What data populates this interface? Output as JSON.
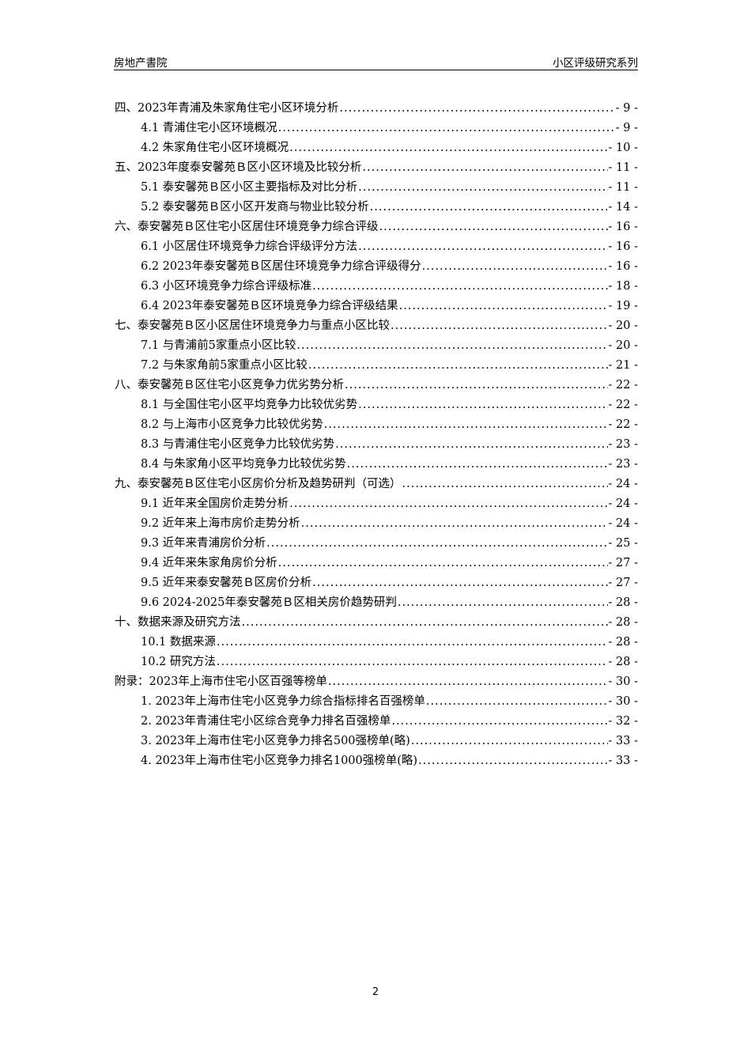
{
  "header": {
    "left": "房地产書院",
    "right": "小区评级研究系列"
  },
  "toc": [
    {
      "level": 1,
      "title": "四、2023年青浦及朱家角住宅小区环境分析",
      "page": "- 9 -"
    },
    {
      "level": 2,
      "title": "4.1 青浦住宅小区环境概况",
      "page": "- 9 -"
    },
    {
      "level": 2,
      "title": "4.2 朱家角住宅小区环境概况",
      "page": "- 10 -"
    },
    {
      "level": 1,
      "title": "五、2023年度泰安馨苑Ｂ区小区环境及比较分析",
      "page": "- 11 -"
    },
    {
      "level": 2,
      "title": "5.1 泰安馨苑Ｂ区小区主要指标及对比分析",
      "page": "- 11 -"
    },
    {
      "level": 2,
      "title": "5.2 泰安馨苑Ｂ区小区开发商与物业比较分析",
      "page": "- 14 -"
    },
    {
      "level": 1,
      "title": "六、泰安馨苑Ｂ区住宅小区居住环境竞争力综合评级",
      "page": "- 16 -"
    },
    {
      "level": 2,
      "title": "6.1 小区居住环境竞争力综合评级评分方法",
      "page": "- 16 -"
    },
    {
      "level": 2,
      "title": "6.2 2023年泰安馨苑Ｂ区居住环境竞争力综合评级得分",
      "page": "- 16 -"
    },
    {
      "level": 2,
      "title": "6.3 小区环境竞争力综合评级标准",
      "page": "- 18 -"
    },
    {
      "level": 2,
      "title": "6.4 2023年泰安馨苑Ｂ区环境竞争力综合评级结果",
      "page": "- 19 -"
    },
    {
      "level": 1,
      "title": "七、泰安馨苑Ｂ区小区居住环境竞争力与重点小区比较",
      "page": "- 20 -"
    },
    {
      "level": 2,
      "title": "7.1 与青浦前5家重点小区比较",
      "page": "- 20 -"
    },
    {
      "level": 2,
      "title": "7.2 与朱家角前5家重点小区比较",
      "page": "- 21 -"
    },
    {
      "level": 1,
      "title": "八、泰安馨苑Ｂ区住宅小区竞争力优劣势分析",
      "page": "- 22 -"
    },
    {
      "level": 2,
      "title": "8.1 与全国住宅小区平均竞争力比较优劣势",
      "page": "- 22 -"
    },
    {
      "level": 2,
      "title": "8.2 与上海市小区竞争力比较优劣势",
      "page": "- 22 -"
    },
    {
      "level": 2,
      "title": "8.3 与青浦住宅小区竞争力比较优劣势",
      "page": "- 23 -"
    },
    {
      "level": 2,
      "title": "8.4 与朱家角小区平均竞争力比较优劣势",
      "page": "- 23 -"
    },
    {
      "level": 1,
      "title": "九、泰安馨苑Ｂ区住宅小区房价分析及趋势研判（可选）",
      "page": "- 24 -"
    },
    {
      "level": 2,
      "title": "9.1 近年来全国房价走势分析",
      "page": "- 24 -"
    },
    {
      "level": 2,
      "title": "9.2 近年来上海市房价走势分析",
      "page": "- 24 -"
    },
    {
      "level": 2,
      "title": "9.3 近年来青浦房价分析",
      "page": "- 25 -"
    },
    {
      "level": 2,
      "title": "9.4 近年来朱家角房价分析",
      "page": "- 27 -"
    },
    {
      "level": 2,
      "title": "9.5 近年来泰安馨苑Ｂ区房价分析",
      "page": "- 27 -"
    },
    {
      "level": 2,
      "title": "9.6 2024-2025年泰安馨苑Ｂ区相关房价趋势研判",
      "page": "- 28 -"
    },
    {
      "level": 1,
      "title": "十、数据来源及研究方法",
      "page": "- 28 -"
    },
    {
      "level": 2,
      "title": "10.1 数据来源",
      "page": "- 28 -"
    },
    {
      "level": 2,
      "title": "10.2 研究方法",
      "page": "- 28 -"
    },
    {
      "level": 1,
      "title": "附录：2023年上海市住宅小区百强等榜单",
      "page": "- 30 -"
    },
    {
      "level": 2,
      "title": "1. 2023年上海市住宅小区竞争力综合指标排名百强榜单",
      "page": "- 30 -"
    },
    {
      "level": 2,
      "title": "2. 2023年青浦住宅小区综合竞争力排名百强榜单",
      "page": "- 32 -"
    },
    {
      "level": 2,
      "title": "3. 2023年上海市住宅小区竞争力排名500强榜单(略)",
      "page": "- 33 -"
    },
    {
      "level": 2,
      "title": "4. 2023年上海市住宅小区竞争力排名1000强榜单(略)",
      "page": "- 33 -"
    }
  ],
  "footer": {
    "page_number": "2"
  }
}
